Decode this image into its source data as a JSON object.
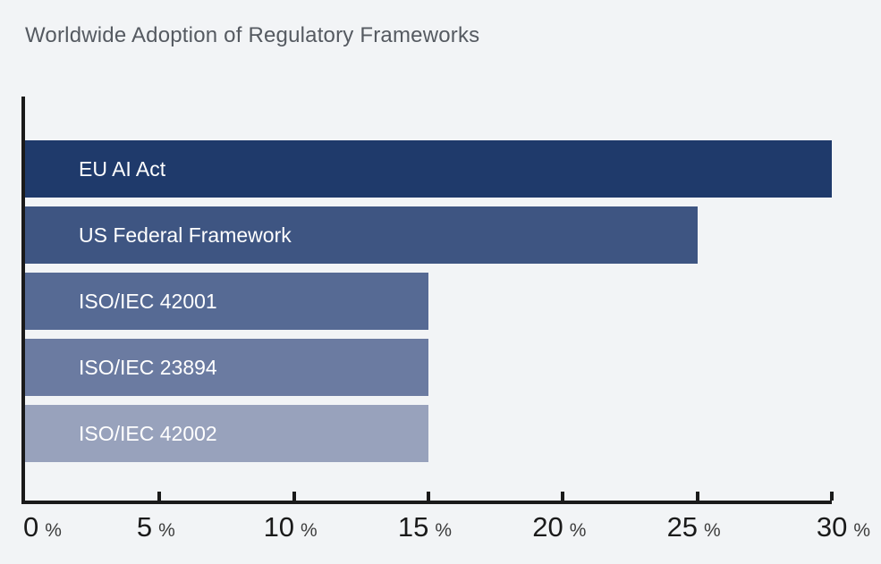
{
  "title": "Worldwide Adoption of Regulatory Frameworks",
  "colors": {
    "background": "#F2F4F6",
    "axis": "#1A1A1A",
    "title_text": "#555A61",
    "bar_label_text": "#FFFFFF",
    "tick_number": "#1A1A1A",
    "tick_percent": "#3C3C3C"
  },
  "chart_data": {
    "type": "bar",
    "orientation": "horizontal",
    "title": "Worldwide Adoption of Regulatory Frameworks",
    "categories": [
      "EU AI Act",
      "US Federal Framework",
      "ISO/IEC 42001",
      "ISO/IEC 23894",
      "ISO/IEC 42002"
    ],
    "values": [
      30,
      25,
      15,
      15,
      15
    ],
    "unit": "%",
    "xlabel": "",
    "ylabel": "",
    "xlim": [
      0,
      30
    ],
    "x_ticks": [
      0,
      5,
      10,
      15,
      20,
      25,
      30
    ],
    "tick_suffix": "%",
    "bar_colors": [
      "#1F3A6B",
      "#3E5582",
      "#566A94",
      "#6B7BA1",
      "#98A2BC"
    ],
    "grid": false,
    "legend": false,
    "bar_labels_inside": true
  }
}
